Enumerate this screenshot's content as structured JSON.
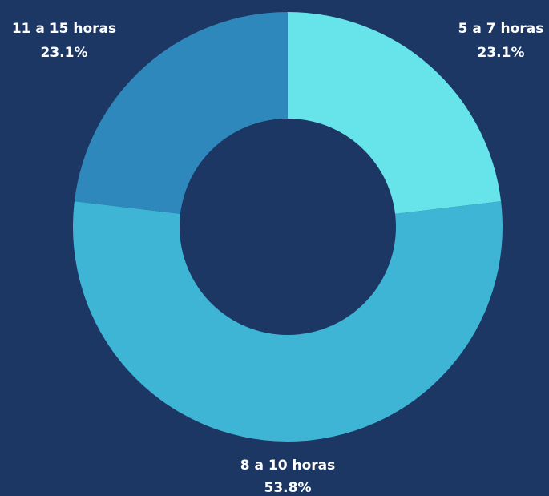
{
  "chart_data": {
    "type": "donut",
    "categories": [
      "5 a 7 horas",
      "8 a 10 horas",
      "11 a 15 horas"
    ],
    "values": [
      23.1,
      53.8,
      23.1
    ],
    "value_labels": [
      "23.1%",
      "53.8%",
      "23.1%"
    ],
    "colors": [
      "#67e4ea",
      "#3fb5d6",
      "#2e88bb"
    ]
  }
}
